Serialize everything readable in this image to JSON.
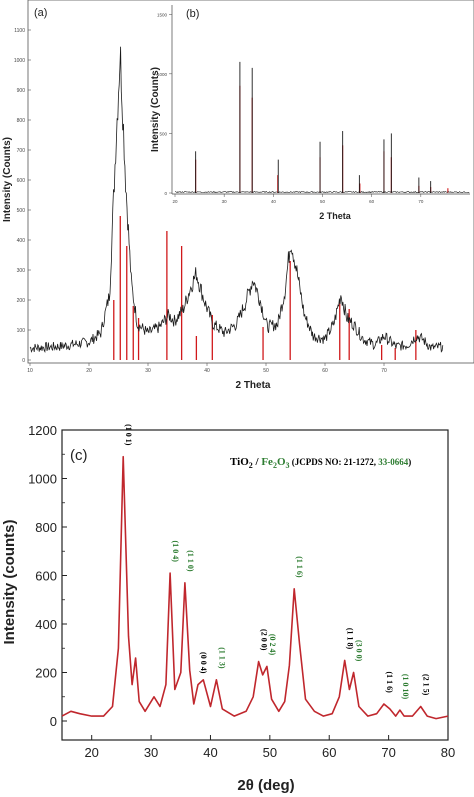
{
  "panel_a": {
    "label": "(a)",
    "ylabel": "Intensity (Counts)",
    "xlabel": "2 Theta"
  },
  "panel_b": {
    "label": "(b)",
    "ylabel": "Intensity (Counts)",
    "xlabel": "2 Theta"
  },
  "panel_c": {
    "label": "(c)",
    "legend": {
      "tio2": "TiO",
      "tio2_sub": "2",
      "sep": " / ",
      "fe2o3": "Fe",
      "fe2o3_sub1": "2",
      "fe2o3_mid": "O",
      "fe2o3_sub2": "3",
      "jcpds": " (JCPDS NO: 21-1272, ",
      "jcpds2": "33-0664",
      "close": ")"
    },
    "ylabel": "Intensity (counts)",
    "xlabel": "2θ (deg)"
  },
  "colors": {
    "pattern": "#1a1a1a",
    "reference": "#d0191b",
    "fit": "#c0272d",
    "tio2_label": "#000000",
    "fe2o3_label": "#2e7d32"
  },
  "chart_data": [
    {
      "id": "a",
      "type": "line",
      "title": "",
      "xlabel": "2 Theta",
      "ylabel": "Intensity (Counts)",
      "xlim": [
        10,
        80
      ],
      "ylim": [
        0,
        1150
      ],
      "xticks": [
        10,
        20,
        30,
        40,
        50,
        60,
        70
      ],
      "yticks": [
        0,
        100,
        200,
        300,
        400,
        500,
        600,
        700,
        800,
        900,
        1000,
        1100
      ],
      "series": [
        {
          "x": [
            10,
            15,
            20,
            22,
            23.5,
            24.5,
            25.3,
            26.2,
            27.2,
            28.2,
            30,
            32,
            33.5,
            34.5,
            36,
            37,
            38.2,
            39.5,
            41,
            43,
            45,
            46.5,
            47.8,
            49,
            50.2,
            52,
            53.2,
            54.2,
            55.2,
            56.5,
            58,
            60,
            61.5,
            62.7,
            63.7,
            64.8,
            66.5,
            68.5,
            70,
            72,
            74,
            75.5,
            76.5,
            78,
            80
          ],
          "y": [
            40,
            45,
            60,
            90,
            220,
            700,
            1030,
            600,
            250,
            120,
            90,
            110,
            150,
            130,
            170,
            230,
            290,
            200,
            120,
            90,
            120,
            190,
            270,
            200,
            110,
            120,
            230,
            400,
            300,
            150,
            80,
            70,
            120,
            220,
            140,
            120,
            70,
            50,
            80,
            45,
            50,
            80,
            70,
            40,
            45
          ]
        }
      ],
      "reference_peaks": {
        "x": [
          24.2,
          25.3,
          26.4,
          27.5,
          28.4,
          33.2,
          35.7,
          38.2,
          40.9,
          49.5,
          54.1,
          62.5,
          64.1,
          69.6,
          71.9,
          75.4
        ],
        "y": [
          200,
          480,
          380,
          180,
          140,
          430,
          380,
          80,
          150,
          110,
          330,
          200,
          170,
          50,
          40,
          100
        ]
      }
    },
    {
      "id": "b",
      "type": "line",
      "title": "",
      "xlabel": "2 Theta",
      "ylabel": "Intensity (Counts)",
      "xlim": [
        20,
        80
      ],
      "xticks": [
        20,
        30,
        40,
        50,
        60,
        70
      ],
      "yticks": [
        0,
        500,
        1000,
        1500
      ],
      "series": [
        {
          "x": [
            20,
            24.2,
            27,
            33.2,
            35.7,
            41,
            49.5,
            54.1,
            57.5,
            62.5,
            64,
            69.6,
            72,
            75.5,
            80
          ],
          "y": [
            0,
            350,
            40,
            1100,
            1050,
            280,
            430,
            520,
            150,
            450,
            500,
            130,
            100,
            60,
            0
          ]
        }
      ],
      "reference_peaks": {
        "x": [
          24.2,
          33.2,
          35.7,
          40.9,
          49.5,
          54.1,
          57.6,
          62.5,
          64.0,
          69.6,
          72.0,
          75.5
        ],
        "y": [
          280,
          900,
          800,
          150,
          300,
          400,
          80,
          350,
          300,
          60,
          50,
          40
        ]
      }
    },
    {
      "id": "c",
      "type": "line",
      "title": "",
      "xlabel": "2θ (deg)",
      "ylabel": "Intensity (counts)",
      "xlim": [
        15,
        80
      ],
      "ylim": [
        -80,
        1200
      ],
      "xticks": [
        20,
        30,
        40,
        50,
        60,
        70,
        80
      ],
      "yticks": [
        0,
        200,
        400,
        600,
        800,
        1000,
        1200
      ],
      "series": [
        {
          "x": [
            15,
            16.5,
            18,
            20,
            22,
            23.5,
            24.5,
            25.3,
            26.2,
            26.8,
            27.4,
            28,
            29,
            30.5,
            31.5,
            32.5,
            33.2,
            34,
            35,
            35.7,
            36.5,
            37.2,
            37.9,
            38.8,
            40,
            41,
            42,
            44,
            46,
            47.2,
            48.1,
            48.8,
            49.5,
            50.3,
            51.5,
            52.5,
            53.3,
            54.1,
            55,
            56,
            57.5,
            59,
            60.5,
            61.7,
            62.6,
            63.4,
            64.1,
            65,
            66.5,
            68,
            69.2,
            70.2,
            71.2,
            71.9,
            72.6,
            74,
            75.4,
            76.5,
            78,
            80
          ],
          "y": [
            20,
            40,
            30,
            20,
            20,
            60,
            300,
            1090,
            350,
            150,
            260,
            80,
            40,
            100,
            60,
            150,
            610,
            130,
            200,
            570,
            210,
            70,
            150,
            170,
            60,
            170,
            50,
            20,
            40,
            100,
            245,
            190,
            225,
            90,
            40,
            80,
            230,
            545,
            320,
            90,
            40,
            20,
            30,
            100,
            250,
            130,
            200,
            60,
            20,
            30,
            70,
            50,
            20,
            45,
            20,
            20,
            60,
            20,
            10,
            20
          ]
        }
      ],
      "annotations": [
        {
          "x": 25.3,
          "text": "(1 0 1)",
          "phase": "TiO2"
        },
        {
          "x": 33.2,
          "text": "(1 0 4)",
          "phase": "Fe2O3"
        },
        {
          "x": 35.7,
          "text": "(1 1 0)",
          "phase": "Fe2O3"
        },
        {
          "x": 37.9,
          "text": "(0 0 4)",
          "phase": "TiO2"
        },
        {
          "x": 41.0,
          "text": "(1 1 3)",
          "phase": "Fe2O3"
        },
        {
          "x": 48.1,
          "text": "(2 0 0)",
          "phase": "TiO2"
        },
        {
          "x": 49.5,
          "text": "(0 2 4)",
          "phase": "Fe2O3"
        },
        {
          "x": 54.1,
          "text": "(1 1 6)",
          "phase": "Fe2O3"
        },
        {
          "x": 62.6,
          "text": "(1 1 8)",
          "phase": "TiO2"
        },
        {
          "x": 64.1,
          "text": "(3 0 0)",
          "phase": "Fe2O3"
        },
        {
          "x": 69.2,
          "text": "(1 1 6)",
          "phase": "TiO2"
        },
        {
          "x": 71.9,
          "text": "(1 0 10)",
          "phase": "Fe2O3"
        },
        {
          "x": 75.4,
          "text": "(2 1 5)",
          "phase": "TiO2"
        }
      ]
    }
  ]
}
